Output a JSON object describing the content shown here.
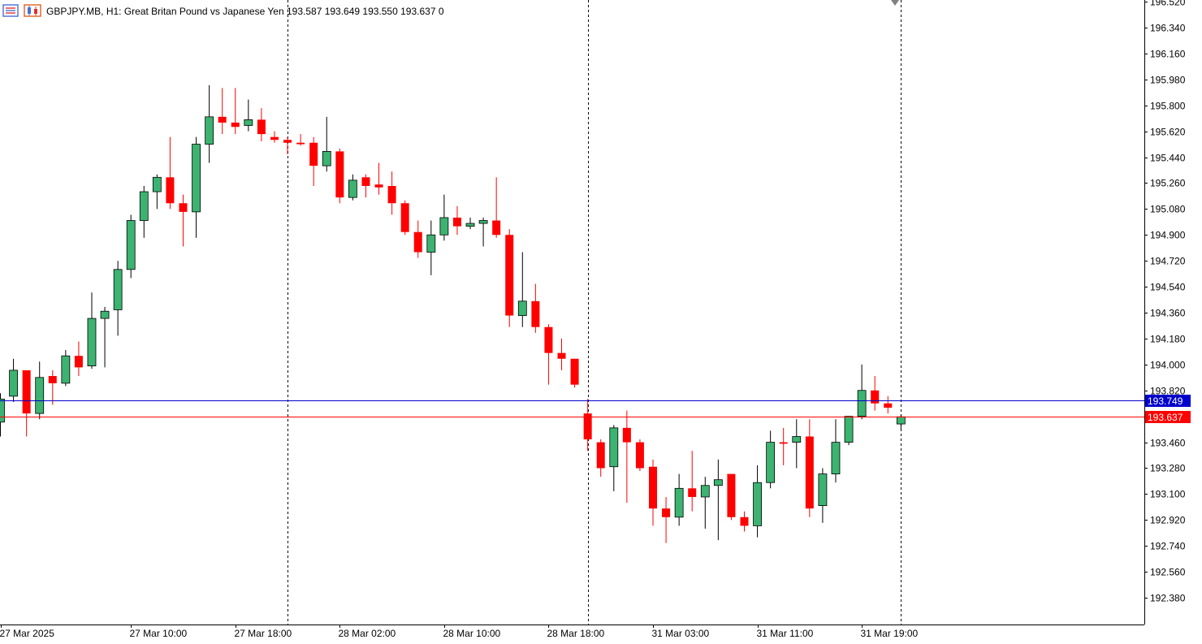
{
  "header": {
    "symbol": "GBPJPY.MB",
    "timeframe": "H1",
    "description": "Great Britan Pound vs Japanese Yen",
    "ohlc": "193.587 193.649 193.550 193.637",
    "extra": "0",
    "icons": [
      "menu-list-icon",
      "chart-candles-icon"
    ]
  },
  "colors": {
    "bull": "#3cb371",
    "bear": "#ff0000",
    "outline": "#000000",
    "bid_line": "#ff0000",
    "ask_line": "#0000cd",
    "background": "#ffffff"
  },
  "chart_data": {
    "type": "candlestick",
    "ylim": [
      192.2,
      196.52
    ],
    "y_ticks": [
      "196.520",
      "196.340",
      "196.160",
      "195.980",
      "195.800",
      "195.620",
      "195.440",
      "195.260",
      "195.080",
      "194.900",
      "194.720",
      "194.540",
      "194.360",
      "194.180",
      "194.000",
      "193.820",
      "193.460",
      "193.280",
      "193.100",
      "192.920",
      "192.740",
      "192.560",
      "192.380"
    ],
    "x_ticks": [
      {
        "label": "27 Mar 2025",
        "index": 0
      },
      {
        "label": "27 Mar 10:00",
        "index": 10
      },
      {
        "label": "27 Mar 18:00",
        "index": 18
      },
      {
        "label": "28 Mar 02:00",
        "index": 26
      },
      {
        "label": "28 Mar 10:00",
        "index": 34
      },
      {
        "label": "28 Mar 18:00",
        "index": 42
      },
      {
        "label": "31 Mar 03:00",
        "index": 50
      },
      {
        "label": "31 Mar 11:00",
        "index": 58
      },
      {
        "label": "31 Mar 19:00",
        "index": 66
      }
    ],
    "separators": [
      22,
      45,
      69
    ],
    "ask_price": "193.749",
    "bid_price": "193.637",
    "candles": [
      {
        "o": 193.6,
        "h": 193.8,
        "l": 193.5,
        "c": 193.76
      },
      {
        "o": 193.78,
        "h": 194.04,
        "l": 193.74,
        "c": 193.96
      },
      {
        "o": 193.96,
        "h": 193.96,
        "l": 193.5,
        "c": 193.66
      },
      {
        "o": 193.66,
        "h": 194.02,
        "l": 193.62,
        "c": 193.91
      },
      {
        "o": 193.92,
        "h": 193.96,
        "l": 193.72,
        "c": 193.87
      },
      {
        "o": 193.87,
        "h": 194.1,
        "l": 193.85,
        "c": 194.06
      },
      {
        "o": 194.06,
        "h": 194.16,
        "l": 193.92,
        "c": 193.98
      },
      {
        "o": 193.99,
        "h": 194.5,
        "l": 193.97,
        "c": 194.32
      },
      {
        "o": 194.32,
        "h": 194.4,
        "l": 193.98,
        "c": 194.37
      },
      {
        "o": 194.38,
        "h": 194.72,
        "l": 194.2,
        "c": 194.66
      },
      {
        "o": 194.66,
        "h": 195.04,
        "l": 194.6,
        "c": 195.0
      },
      {
        "o": 195.0,
        "h": 195.24,
        "l": 194.88,
        "c": 195.2
      },
      {
        "o": 195.2,
        "h": 195.32,
        "l": 195.08,
        "c": 195.3
      },
      {
        "o": 195.3,
        "h": 195.58,
        "l": 195.08,
        "c": 195.12
      },
      {
        "o": 195.12,
        "h": 195.18,
        "l": 194.82,
        "c": 195.06
      },
      {
        "o": 195.06,
        "h": 195.58,
        "l": 194.88,
        "c": 195.53
      },
      {
        "o": 195.53,
        "h": 195.94,
        "l": 195.4,
        "c": 195.72
      },
      {
        "o": 195.72,
        "h": 195.92,
        "l": 195.6,
        "c": 195.68
      },
      {
        "o": 195.68,
        "h": 195.92,
        "l": 195.6,
        "c": 195.65
      },
      {
        "o": 195.66,
        "h": 195.84,
        "l": 195.62,
        "c": 195.7
      },
      {
        "o": 195.7,
        "h": 195.78,
        "l": 195.55,
        "c": 195.6
      },
      {
        "o": 195.58,
        "h": 195.62,
        "l": 195.54,
        "c": 195.56
      },
      {
        "o": 195.56,
        "h": 195.58,
        "l": 195.46,
        "c": 195.54
      },
      {
        "o": 195.54,
        "h": 195.6,
        "l": 195.52,
        "c": 195.53
      },
      {
        "o": 195.54,
        "h": 195.58,
        "l": 195.24,
        "c": 195.38
      },
      {
        "o": 195.38,
        "h": 195.72,
        "l": 195.34,
        "c": 195.48
      },
      {
        "o": 195.48,
        "h": 195.5,
        "l": 195.12,
        "c": 195.16
      },
      {
        "o": 195.16,
        "h": 195.32,
        "l": 195.14,
        "c": 195.28
      },
      {
        "o": 195.3,
        "h": 195.32,
        "l": 195.16,
        "c": 195.24
      },
      {
        "o": 195.25,
        "h": 195.4,
        "l": 195.18,
        "c": 195.23
      },
      {
        "o": 195.24,
        "h": 195.34,
        "l": 195.04,
        "c": 195.12
      },
      {
        "o": 195.12,
        "h": 195.14,
        "l": 194.9,
        "c": 194.92
      },
      {
        "o": 194.92,
        "h": 195.0,
        "l": 194.74,
        "c": 194.78
      },
      {
        "o": 194.78,
        "h": 195.0,
        "l": 194.62,
        "c": 194.9
      },
      {
        "o": 194.9,
        "h": 195.18,
        "l": 194.86,
        "c": 195.02
      },
      {
        "o": 195.02,
        "h": 195.1,
        "l": 194.9,
        "c": 194.96
      },
      {
        "o": 194.96,
        "h": 195.02,
        "l": 194.94,
        "c": 194.98
      },
      {
        "o": 194.98,
        "h": 195.02,
        "l": 194.82,
        "c": 195.0
      },
      {
        "o": 195.0,
        "h": 195.3,
        "l": 194.88,
        "c": 194.9
      },
      {
        "o": 194.9,
        "h": 194.94,
        "l": 194.26,
        "c": 194.34
      },
      {
        "o": 194.34,
        "h": 194.78,
        "l": 194.26,
        "c": 194.44
      },
      {
        "o": 194.44,
        "h": 194.56,
        "l": 194.22,
        "c": 194.26
      },
      {
        "o": 194.26,
        "h": 194.28,
        "l": 193.86,
        "c": 194.08
      },
      {
        "o": 194.08,
        "h": 194.18,
        "l": 193.96,
        "c": 194.04
      },
      {
        "o": 194.04,
        "h": 194.04,
        "l": 193.84,
        "c": 193.86
      },
      {
        "o": 193.66,
        "h": 193.76,
        "l": 193.4,
        "c": 193.48
      },
      {
        "o": 193.46,
        "h": 193.48,
        "l": 193.22,
        "c": 193.28
      },
      {
        "o": 193.29,
        "h": 193.58,
        "l": 193.12,
        "c": 193.56
      },
      {
        "o": 193.56,
        "h": 193.68,
        "l": 193.04,
        "c": 193.46
      },
      {
        "o": 193.46,
        "h": 193.48,
        "l": 193.26,
        "c": 193.28
      },
      {
        "o": 193.29,
        "h": 193.34,
        "l": 192.88,
        "c": 193.0
      },
      {
        "o": 193.0,
        "h": 193.08,
        "l": 192.76,
        "c": 192.94
      },
      {
        "o": 192.94,
        "h": 193.24,
        "l": 192.88,
        "c": 193.14
      },
      {
        "o": 193.14,
        "h": 193.4,
        "l": 192.98,
        "c": 193.08
      },
      {
        "o": 193.08,
        "h": 193.22,
        "l": 192.86,
        "c": 193.16
      },
      {
        "o": 193.16,
        "h": 193.34,
        "l": 192.78,
        "c": 193.2
      },
      {
        "o": 193.24,
        "h": 193.24,
        "l": 192.92,
        "c": 192.94
      },
      {
        "o": 192.94,
        "h": 192.98,
        "l": 192.84,
        "c": 192.88
      },
      {
        "o": 192.88,
        "h": 193.3,
        "l": 192.8,
        "c": 193.18
      },
      {
        "o": 193.18,
        "h": 193.54,
        "l": 193.14,
        "c": 193.46
      },
      {
        "o": 193.46,
        "h": 193.56,
        "l": 193.3,
        "c": 193.45
      },
      {
        "o": 193.46,
        "h": 193.62,
        "l": 193.28,
        "c": 193.5
      },
      {
        "o": 193.5,
        "h": 193.62,
        "l": 192.94,
        "c": 193.0
      },
      {
        "o": 193.02,
        "h": 193.28,
        "l": 192.9,
        "c": 193.24
      },
      {
        "o": 193.24,
        "h": 193.62,
        "l": 193.18,
        "c": 193.46
      },
      {
        "o": 193.46,
        "h": 193.64,
        "l": 193.44,
        "c": 193.64
      },
      {
        "o": 193.64,
        "h": 194.0,
        "l": 193.62,
        "c": 193.82
      },
      {
        "o": 193.82,
        "h": 193.92,
        "l": 193.68,
        "c": 193.73
      },
      {
        "o": 193.73,
        "h": 193.78,
        "l": 193.66,
        "c": 193.7
      },
      {
        "o": 193.587,
        "h": 193.649,
        "l": 193.55,
        "c": 193.637
      }
    ]
  }
}
